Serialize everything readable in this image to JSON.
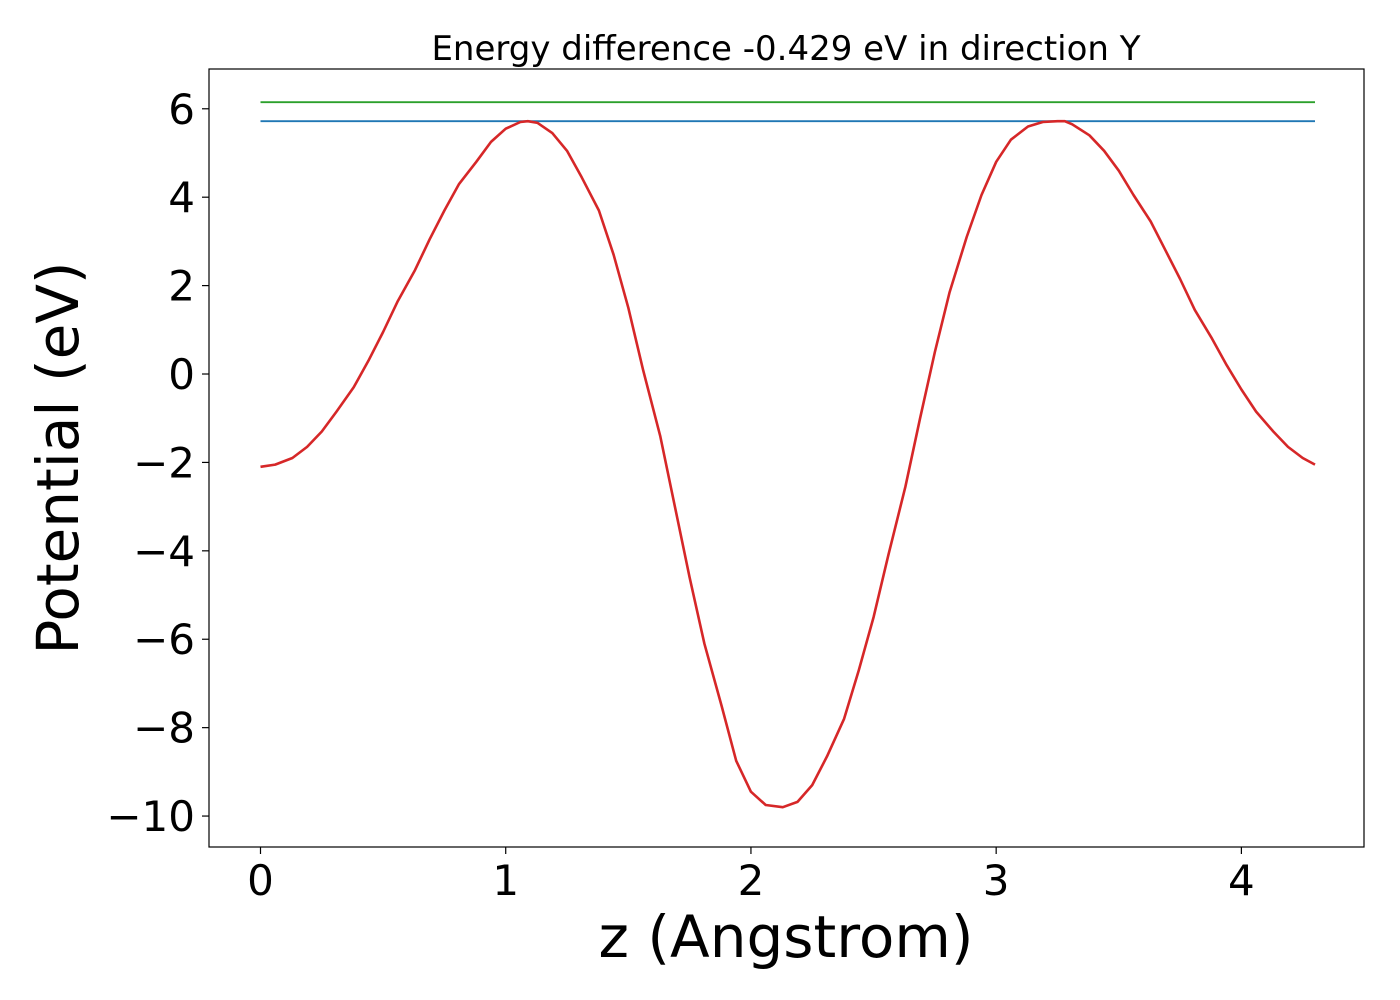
{
  "chart_data": {
    "type": "line",
    "title": "Energy difference -0.429 eV in direction Y",
    "xlabel": "z (Angstrom)",
    "ylabel": "Potential (eV)",
    "xlim": [
      -0.21,
      4.5
    ],
    "ylim": [
      -10.7,
      6.9
    ],
    "grid": false,
    "xticks": [
      0,
      1,
      2,
      3,
      4
    ],
    "xtick_labels": [
      "0",
      "1",
      "2",
      "3",
      "4"
    ],
    "yticks": [
      6,
      4,
      2,
      0,
      -2,
      -4,
      -6,
      -8,
      -10
    ],
    "ytick_labels": [
      "6",
      "4",
      "2",
      "0",
      "−2",
      "−4",
      "−6",
      "−8",
      "−10"
    ],
    "series": [
      {
        "color": "#2ca02c",
        "x": [
          0,
          4.3
        ],
        "y": [
          6.15,
          6.15
        ]
      },
      {
        "color": "#1f77b4",
        "x": [
          0,
          4.3
        ],
        "y": [
          5.72,
          5.72
        ]
      },
      {
        "color": "#d62728",
        "x": [
          0.0,
          0.06,
          0.13,
          0.19,
          0.25,
          0.31,
          0.38,
          0.44,
          0.5,
          0.56,
          0.63,
          0.69,
          0.75,
          0.81,
          0.88,
          0.94,
          1.0,
          1.06,
          1.09,
          1.13,
          1.19,
          1.25,
          1.31,
          1.38,
          1.44,
          1.5,
          1.56,
          1.63,
          1.69,
          1.75,
          1.81,
          1.88,
          1.94,
          2.0,
          2.06,
          2.13,
          2.19,
          2.25,
          2.31,
          2.38,
          2.44,
          2.5,
          2.56,
          2.63,
          2.69,
          2.75,
          2.81,
          2.88,
          2.94,
          3.0,
          3.06,
          3.13,
          3.19,
          3.25,
          3.28,
          3.31,
          3.38,
          3.44,
          3.5,
          3.56,
          3.63,
          3.69,
          3.75,
          3.81,
          3.88,
          3.94,
          4.0,
          4.06,
          4.13,
          4.19,
          4.25,
          4.3
        ],
        "y": [
          -2.1,
          -2.05,
          -1.9,
          -1.65,
          -1.3,
          -0.85,
          -0.3,
          0.3,
          0.95,
          1.65,
          2.35,
          3.05,
          3.7,
          4.3,
          4.8,
          5.25,
          5.55,
          5.7,
          5.72,
          5.68,
          5.45,
          5.05,
          4.45,
          3.7,
          2.7,
          1.5,
          0.1,
          -1.4,
          -3.0,
          -4.6,
          -6.1,
          -7.5,
          -8.75,
          -9.45,
          -9.75,
          -9.8,
          -9.68,
          -9.3,
          -8.65,
          -7.8,
          -6.7,
          -5.5,
          -4.1,
          -2.55,
          -1.0,
          0.5,
          1.85,
          3.1,
          4.05,
          4.8,
          5.3,
          5.6,
          5.7,
          5.72,
          5.72,
          5.65,
          5.4,
          5.05,
          4.6,
          4.05,
          3.45,
          2.8,
          2.15,
          1.45,
          0.8,
          0.2,
          -0.35,
          -0.85,
          -1.3,
          -1.65,
          -1.9,
          -2.05
        ]
      }
    ]
  }
}
